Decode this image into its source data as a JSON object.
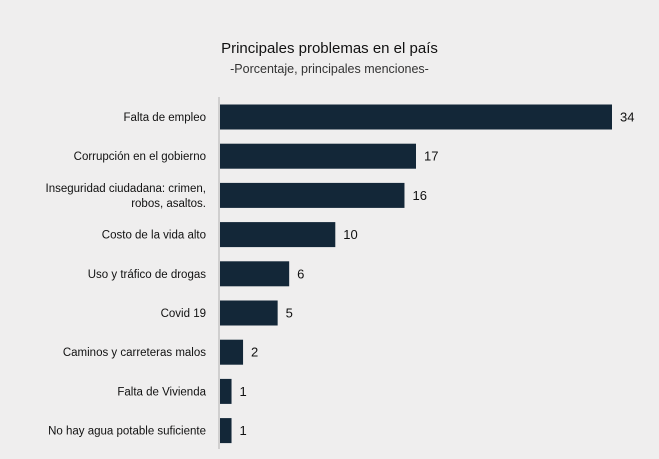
{
  "colors": {
    "bar": "#132738",
    "background": "#efeeee",
    "axis": "#b0b0b0",
    "text": "#111111"
  },
  "chart_data": {
    "type": "bar",
    "orientation": "horizontal",
    "title": "Principales problemas en el país",
    "subtitle": "-Porcentaje, principales menciones-",
    "xlabel": "",
    "ylabel": "",
    "xlim": [
      0,
      34
    ],
    "grid": false,
    "legend": "none",
    "categories": [
      [
        "Falta de empleo"
      ],
      [
        "Corrupción en el gobierno"
      ],
      [
        "Inseguridad ciudadana: crimen,",
        "robos, asaltos."
      ],
      [
        "Costo de la vida alto"
      ],
      [
        "Uso y tráfico de drogas"
      ],
      [
        "Covid 19"
      ],
      [
        "Caminos y carreteras malos"
      ],
      [
        "Falta de Vivienda"
      ],
      [
        "No hay agua potable suficiente"
      ]
    ],
    "values": [
      34,
      17,
      16,
      10,
      6,
      5,
      2,
      1,
      1
    ]
  }
}
